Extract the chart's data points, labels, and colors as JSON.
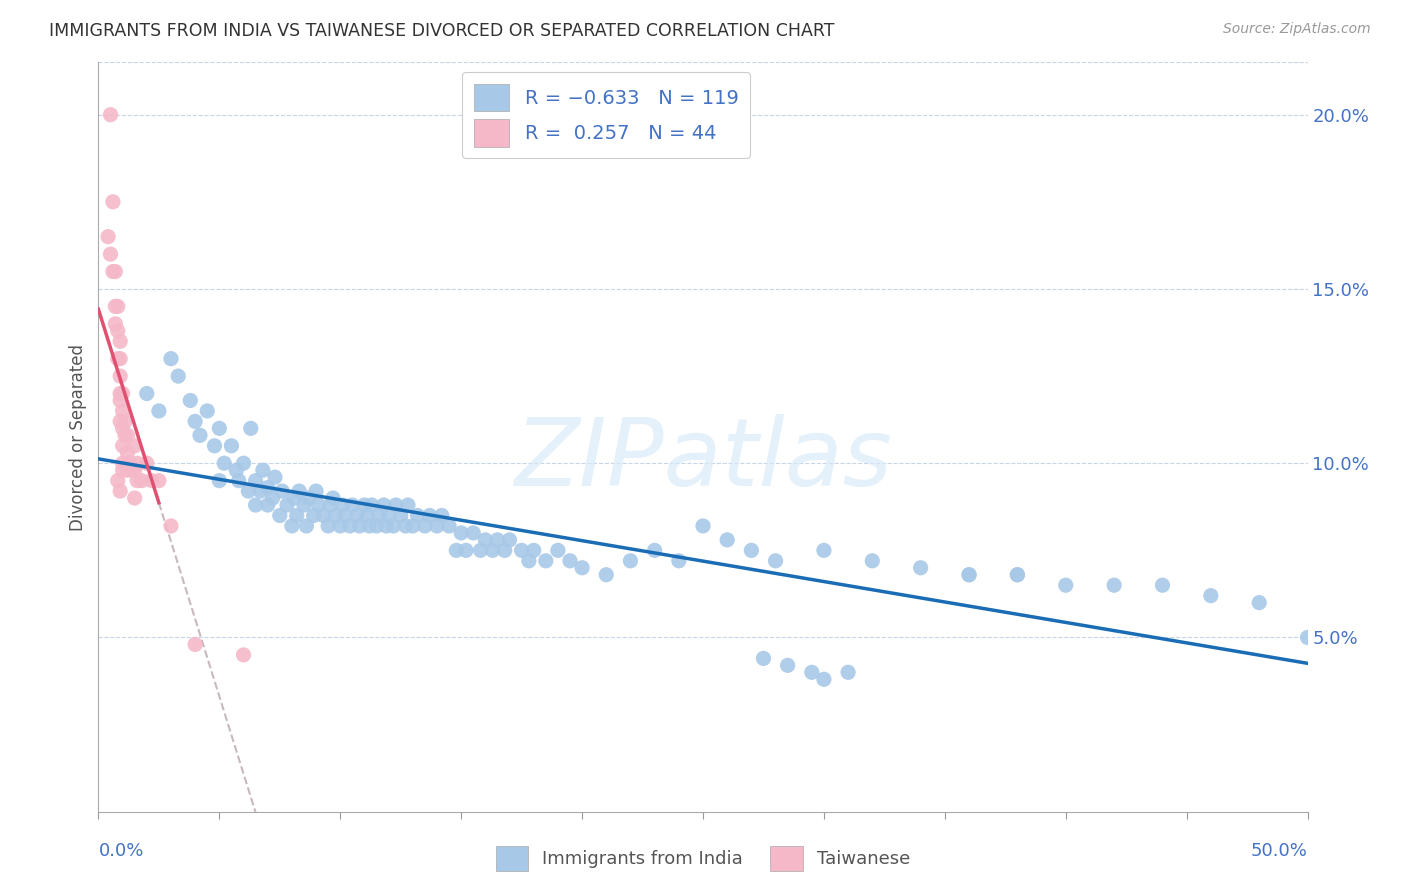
{
  "title": "IMMIGRANTS FROM INDIA VS TAIWANESE DIVORCED OR SEPARATED CORRELATION CHART",
  "source": "Source: ZipAtlas.com",
  "ylabel": "Divorced or Separated",
  "right_yticks": [
    "5.0%",
    "10.0%",
    "15.0%",
    "20.0%"
  ],
  "right_ytick_vals": [
    0.05,
    0.1,
    0.15,
    0.2
  ],
  "xlim": [
    0.0,
    0.5
  ],
  "ylim": [
    0.0,
    0.215
  ],
  "watermark": "ZIPatlas",
  "blue_color": "#a8c8e8",
  "pink_color": "#f4b8c8",
  "trendline_blue": "#1a6cb5",
  "trendline_pink_solid": "#e05070",
  "trendline_pink_dash": "#c8b0b8",
  "india_scatter_x": [
    0.02,
    0.025,
    0.03,
    0.033,
    0.038,
    0.04,
    0.042,
    0.045,
    0.048,
    0.05,
    0.05,
    0.052,
    0.055,
    0.057,
    0.058,
    0.06,
    0.062,
    0.063,
    0.065,
    0.065,
    0.067,
    0.068,
    0.07,
    0.07,
    0.072,
    0.073,
    0.075,
    0.076,
    0.078,
    0.08,
    0.081,
    0.082,
    0.083,
    0.085,
    0.086,
    0.087,
    0.089,
    0.09,
    0.091,
    0.093,
    0.095,
    0.096,
    0.097,
    0.098,
    0.1,
    0.101,
    0.102,
    0.104,
    0.105,
    0.107,
    0.108,
    0.11,
    0.111,
    0.112,
    0.113,
    0.115,
    0.116,
    0.118,
    0.119,
    0.12,
    0.122,
    0.123,
    0.125,
    0.127,
    0.128,
    0.13,
    0.132,
    0.135,
    0.137,
    0.14,
    0.142,
    0.145,
    0.148,
    0.15,
    0.152,
    0.155,
    0.158,
    0.16,
    0.163,
    0.165,
    0.168,
    0.17,
    0.175,
    0.178,
    0.18,
    0.185,
    0.19,
    0.195,
    0.2,
    0.21,
    0.22,
    0.23,
    0.24,
    0.25,
    0.26,
    0.27,
    0.28,
    0.3,
    0.32,
    0.34,
    0.36,
    0.38,
    0.4,
    0.42,
    0.44,
    0.46,
    0.48,
    0.5,
    0.36,
    0.38,
    0.3,
    0.31,
    0.295,
    0.285,
    0.275
  ],
  "india_scatter_y": [
    0.12,
    0.115,
    0.13,
    0.125,
    0.118,
    0.112,
    0.108,
    0.115,
    0.105,
    0.11,
    0.095,
    0.1,
    0.105,
    0.098,
    0.095,
    0.1,
    0.092,
    0.11,
    0.095,
    0.088,
    0.092,
    0.098,
    0.088,
    0.093,
    0.09,
    0.096,
    0.085,
    0.092,
    0.088,
    0.082,
    0.09,
    0.085,
    0.092,
    0.088,
    0.082,
    0.09,
    0.085,
    0.092,
    0.088,
    0.085,
    0.082,
    0.088,
    0.09,
    0.085,
    0.082,
    0.088,
    0.085,
    0.082,
    0.088,
    0.085,
    0.082,
    0.088,
    0.085,
    0.082,
    0.088,
    0.082,
    0.085,
    0.088,
    0.082,
    0.085,
    0.082,
    0.088,
    0.085,
    0.082,
    0.088,
    0.082,
    0.085,
    0.082,
    0.085,
    0.082,
    0.085,
    0.082,
    0.075,
    0.08,
    0.075,
    0.08,
    0.075,
    0.078,
    0.075,
    0.078,
    0.075,
    0.078,
    0.075,
    0.072,
    0.075,
    0.072,
    0.075,
    0.072,
    0.07,
    0.068,
    0.072,
    0.075,
    0.072,
    0.082,
    0.078,
    0.075,
    0.072,
    0.075,
    0.072,
    0.07,
    0.068,
    0.068,
    0.065,
    0.065,
    0.065,
    0.062,
    0.06,
    0.05,
    0.068,
    0.068,
    0.038,
    0.04,
    0.04,
    0.042,
    0.044
  ],
  "taiwan_scatter_x": [
    0.004,
    0.005,
    0.005,
    0.006,
    0.006,
    0.007,
    0.007,
    0.007,
    0.008,
    0.008,
    0.008,
    0.009,
    0.009,
    0.009,
    0.009,
    0.009,
    0.009,
    0.01,
    0.01,
    0.01,
    0.01,
    0.01,
    0.011,
    0.011,
    0.012,
    0.012,
    0.012,
    0.013,
    0.014,
    0.015,
    0.015,
    0.016,
    0.016,
    0.018,
    0.02,
    0.022,
    0.025,
    0.03,
    0.01,
    0.015,
    0.008,
    0.009,
    0.04,
    0.06
  ],
  "taiwan_scatter_y": [
    0.165,
    0.2,
    0.16,
    0.175,
    0.155,
    0.155,
    0.14,
    0.145,
    0.145,
    0.138,
    0.13,
    0.135,
    0.13,
    0.125,
    0.12,
    0.118,
    0.112,
    0.12,
    0.115,
    0.11,
    0.105,
    0.1,
    0.112,
    0.108,
    0.108,
    0.103,
    0.098,
    0.1,
    0.098,
    0.105,
    0.098,
    0.1,
    0.095,
    0.095,
    0.1,
    0.095,
    0.095,
    0.082,
    0.098,
    0.09,
    0.095,
    0.092,
    0.048,
    0.045
  ],
  "india_trend_x0": 0.0,
  "india_trend_x1": 0.5,
  "taiwan_trend_x0": 0.0,
  "taiwan_trend_x1": 0.025
}
